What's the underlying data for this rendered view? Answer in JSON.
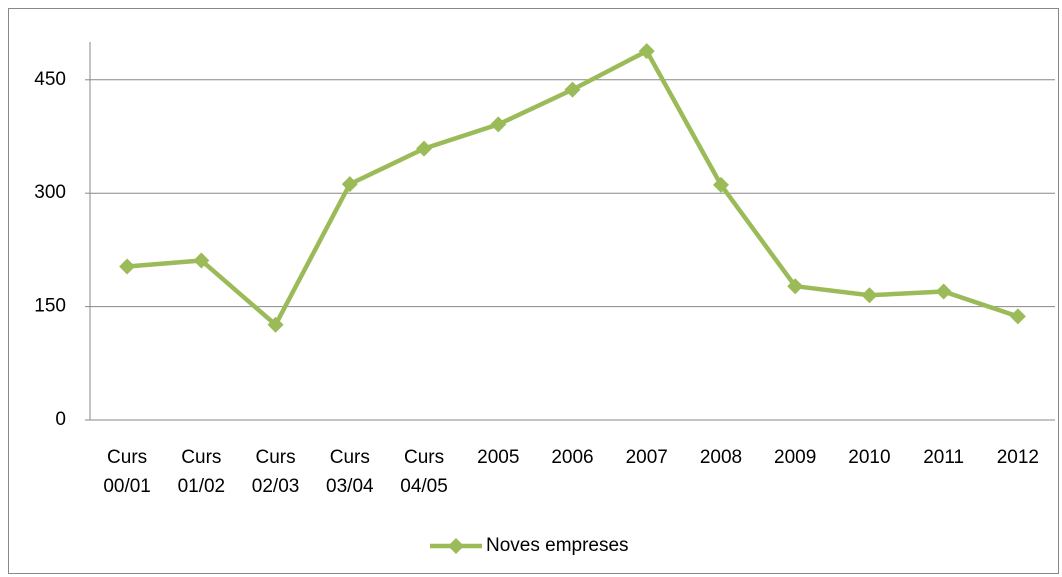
{
  "chart_data": {
    "type": "line",
    "categories": [
      "Curs 00/01",
      "Curs 01/02",
      "Curs 02/03",
      "Curs 03/04",
      "Curs 04/05",
      "2005",
      "2006",
      "2007",
      "2008",
      "2009",
      "2010",
      "2011",
      "2012"
    ],
    "series": [
      {
        "name": "Noves empreses",
        "color": "#9bbb59",
        "values": [
          203,
          211,
          126,
          312,
          359,
          391,
          437,
          488,
          311,
          177,
          165,
          170,
          137
        ]
      }
    ],
    "ylim": [
      0,
      500
    ],
    "yticks": [
      0,
      150,
      300,
      450
    ],
    "grid": true,
    "legend": "bottom"
  }
}
